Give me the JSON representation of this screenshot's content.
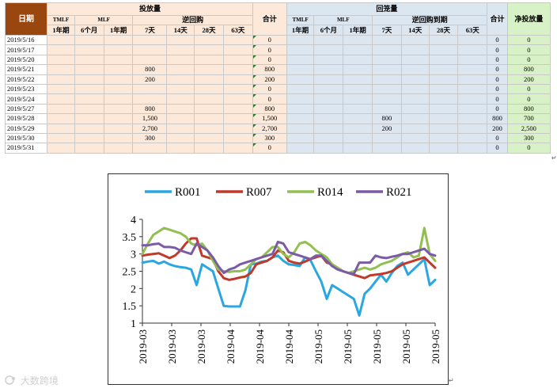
{
  "table": {
    "date_header": "日期",
    "injection_header": "投放量",
    "return_header": "回笼量",
    "net_header": "净投放量",
    "tmlf": "TMLF",
    "mlf": "MLF",
    "reverse_repo": "逆回购",
    "reverse_repo_due": "逆回购到期",
    "sum_label": "合计",
    "term_1y": "1年期",
    "term_6m": "6个月",
    "term_7d": "7天",
    "term_14d": "14天",
    "term_28d": "28天",
    "term_63d": "63天",
    "rows": [
      {
        "date": "2019/5/16",
        "inj": [
          "",
          "",
          "",
          "",
          "",
          "",
          ""
        ],
        "inj_sum": "0",
        "ret": [
          "",
          "",
          "",
          "",
          "",
          "",
          ""
        ],
        "ret_sum": "0",
        "net": "0"
      },
      {
        "date": "2019/5/17",
        "inj": [
          "",
          "",
          "",
          "",
          "",
          "",
          ""
        ],
        "inj_sum": "0",
        "ret": [
          "",
          "",
          "",
          "",
          "",
          "",
          ""
        ],
        "ret_sum": "0",
        "net": "0"
      },
      {
        "date": "2019/5/20",
        "inj": [
          "",
          "",
          "",
          "",
          "",
          "",
          ""
        ],
        "inj_sum": "0",
        "ret": [
          "",
          "",
          "",
          "",
          "",
          "",
          ""
        ],
        "ret_sum": "0",
        "net": "0"
      },
      {
        "date": "2019/5/21",
        "inj": [
          "",
          "",
          "",
          "800",
          "",
          "",
          ""
        ],
        "inj_sum": "800",
        "ret": [
          "",
          "",
          "",
          "",
          "",
          "",
          ""
        ],
        "ret_sum": "0",
        "net": "800"
      },
      {
        "date": "2019/5/22",
        "inj": [
          "",
          "",
          "",
          "200",
          "",
          "",
          ""
        ],
        "inj_sum": "200",
        "ret": [
          "",
          "",
          "",
          "",
          "",
          "",
          ""
        ],
        "ret_sum": "0",
        "net": "200"
      },
      {
        "date": "2019/5/23",
        "inj": [
          "",
          "",
          "",
          "",
          "",
          "",
          ""
        ],
        "inj_sum": "0",
        "ret": [
          "",
          "",
          "",
          "",
          "",
          "",
          ""
        ],
        "ret_sum": "0",
        "net": "0"
      },
      {
        "date": "2019/5/24",
        "inj": [
          "",
          "",
          "",
          "",
          "",
          "",
          ""
        ],
        "inj_sum": "0",
        "ret": [
          "",
          "",
          "",
          "",
          "",
          "",
          ""
        ],
        "ret_sum": "0",
        "net": "0"
      },
      {
        "date": "2019/5/27",
        "inj": [
          "",
          "",
          "",
          "800",
          "",
          "",
          ""
        ],
        "inj_sum": "800",
        "ret": [
          "",
          "",
          "",
          "",
          "",
          "",
          ""
        ],
        "ret_sum": "0",
        "net": "800"
      },
      {
        "date": "2019/5/28",
        "inj": [
          "",
          "",
          "",
          "1,500",
          "",
          "",
          ""
        ],
        "inj_sum": "1,500",
        "ret": [
          "",
          "",
          "",
          "800",
          "",
          "",
          ""
        ],
        "ret_sum": "800",
        "net": "700"
      },
      {
        "date": "2019/5/29",
        "inj": [
          "",
          "",
          "",
          "2,700",
          "",
          "",
          ""
        ],
        "inj_sum": "2,700",
        "ret": [
          "",
          "",
          "",
          "200",
          "",
          "",
          ""
        ],
        "ret_sum": "200",
        "net": "2,500"
      },
      {
        "date": "2019/5/30",
        "inj": [
          "",
          "",
          "",
          "300",
          "",
          "",
          ""
        ],
        "inj_sum": "300",
        "ret": [
          "",
          "",
          "",
          "",
          "",
          "",
          ""
        ],
        "ret_sum": "0",
        "net": "300"
      },
      {
        "date": "2019/5/31",
        "inj": [
          "",
          "",
          "",
          "",
          "",
          "",
          ""
        ],
        "inj_sum": "0",
        "ret": [
          "",
          "",
          "",
          "",
          "",
          "",
          ""
        ],
        "ret_sum": "0",
        "net": "0"
      }
    ]
  },
  "chart_data": {
    "type": "line",
    "title": "",
    "xlabel": "",
    "ylabel": "",
    "ylim": [
      1,
      4
    ],
    "yticks": [
      "1",
      "1.5",
      "2",
      "2.5",
      "3",
      "3.5",
      "4"
    ],
    "xticks": [
      "2019-03",
      "2019-03",
      "2019-03",
      "2019-04",
      "2019-04",
      "2019-04",
      "2019-05",
      "2019-05",
      "2019-05",
      "2019-05",
      "2019-05"
    ],
    "grid": false,
    "legend": "top",
    "series": [
      {
        "name": "R001",
        "color": "#2aa7e0",
        "values": [
          2.75,
          2.78,
          2.8,
          2.72,
          2.78,
          2.7,
          2.65,
          2.62,
          2.6,
          2.55,
          2.1,
          2.7,
          2.6,
          2.5,
          2.0,
          1.5,
          1.48,
          1.48,
          1.48,
          1.95,
          2.7,
          2.72,
          2.78,
          2.8,
          2.9,
          2.95,
          2.8,
          2.7,
          2.68,
          2.65,
          2.9,
          2.82,
          2.5,
          2.2,
          1.7,
          2.1,
          2.0,
          1.9,
          1.8,
          1.7,
          1.22,
          1.85,
          2.0,
          2.2,
          2.4,
          2.2,
          2.45,
          2.65,
          2.75,
          2.4,
          2.55,
          2.7,
          2.85,
          2.1,
          2.25
        ]
      },
      {
        "name": "R007",
        "color": "#c0392b",
        "values": [
          2.95,
          2.98,
          3.0,
          3.02,
          2.95,
          2.88,
          2.95,
          3.1,
          3.3,
          3.45,
          3.45,
          2.95,
          2.9,
          2.85,
          2.5,
          2.3,
          2.25,
          2.28,
          2.32,
          2.35,
          2.45,
          2.7,
          2.75,
          2.8,
          2.9,
          3.1,
          3.05,
          2.8,
          2.75,
          2.72,
          2.78,
          2.85,
          2.9,
          2.95,
          2.75,
          2.7,
          2.6,
          2.5,
          2.45,
          2.4,
          2.35,
          2.3,
          2.38,
          2.4,
          2.42,
          2.45,
          2.5,
          2.6,
          2.7,
          2.75,
          2.8,
          2.85,
          2.9,
          2.75,
          2.6
        ]
      },
      {
        "name": "R014",
        "color": "#92c050",
        "values": [
          3.0,
          3.3,
          3.55,
          3.65,
          3.75,
          3.7,
          3.65,
          3.6,
          3.5,
          3.3,
          3.25,
          3.3,
          3.1,
          2.8,
          2.55,
          2.5,
          2.48,
          2.5,
          2.5,
          2.55,
          2.7,
          2.85,
          2.9,
          3.05,
          3.2,
          3.2,
          3.0,
          2.9,
          3.05,
          3.3,
          3.35,
          3.25,
          3.1,
          3.0,
          2.9,
          2.7,
          2.6,
          2.5,
          2.45,
          2.5,
          2.55,
          2.6,
          2.55,
          2.6,
          2.7,
          2.75,
          2.8,
          2.9,
          3.0,
          3.05,
          2.9,
          2.95,
          3.75,
          3.0,
          2.8
        ]
      },
      {
        "name": "R021",
        "color": "#7b5aa6",
        "values": [
          3.25,
          3.25,
          3.28,
          3.3,
          3.2,
          3.2,
          3.18,
          3.1,
          3.05,
          3.0,
          3.3,
          3.2,
          3.1,
          2.9,
          2.65,
          2.45,
          2.55,
          2.6,
          2.7,
          2.75,
          2.8,
          2.85,
          2.9,
          2.95,
          3.0,
          3.35,
          3.3,
          3.05,
          3.0,
          2.95,
          2.9,
          2.85,
          2.95,
          2.95,
          2.8,
          2.65,
          2.55,
          2.5,
          2.45,
          2.42,
          2.75,
          2.75,
          2.75,
          2.95,
          2.9,
          2.88,
          2.92,
          2.95,
          3.0,
          3.0,
          3.05,
          3.1,
          3.15,
          3.0,
          2.95
        ]
      }
    ]
  },
  "watermark": "大数跨境"
}
